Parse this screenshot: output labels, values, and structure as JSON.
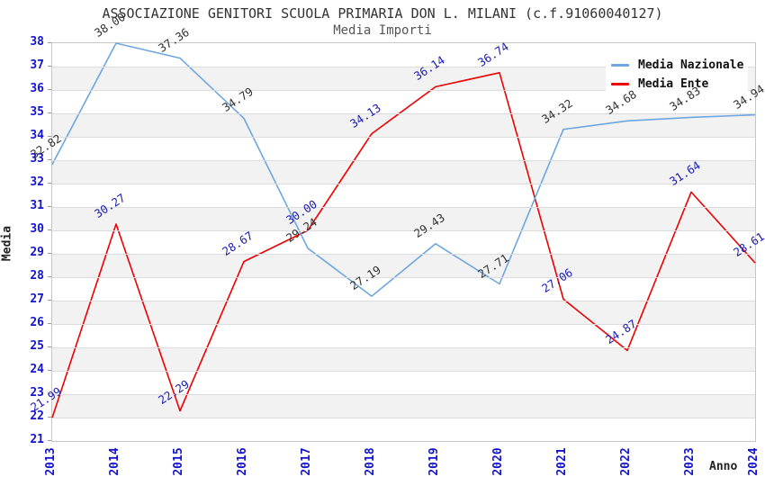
{
  "header": {
    "title": "ASSOCIAZIONE GENITORI SCUOLA PRIMARIA DON L. MILANI (c.f.91060040127)",
    "subtitle": "Media Importi"
  },
  "axes": {
    "y_label": "Media",
    "x_label": "Anno"
  },
  "colors": {
    "nazionale_line": "#6ea6e0",
    "ente_line": "#ee0000",
    "tick_text": "#1414cc",
    "nazionale_point_label": "#333333",
    "ente_point_label": "#1b1bb3",
    "band_gray": "#f2f2f2"
  },
  "legend": {
    "items": [
      {
        "label": "Media Nazionale",
        "color": "#6ea6e0"
      },
      {
        "label": "Media Ente",
        "color": "#ee0000"
      }
    ]
  },
  "chart_data": {
    "type": "line",
    "title": "ASSOCIAZIONE GENITORI SCUOLA PRIMARIA DON L. MILANI (c.f.91060040127)",
    "subtitle": "Media Importi",
    "xlabel": "Anno",
    "ylabel": "Media",
    "x": [
      "2013",
      "2014",
      "2015",
      "2016",
      "2017",
      "2018",
      "2019",
      "2020",
      "2021",
      "2022",
      "2023",
      "2024"
    ],
    "series": [
      {
        "name": "Media Nazionale",
        "color": "#6ea6e0",
        "label_color": "#333333",
        "values": [
          32.82,
          38.0,
          37.36,
          34.79,
          29.24,
          27.19,
          29.43,
          27.71,
          34.32,
          34.68,
          34.83,
          34.94
        ]
      },
      {
        "name": "Media Ente",
        "color": "#ee0000",
        "label_color": "#1b1bb3",
        "values": [
          21.99,
          30.27,
          22.29,
          28.67,
          30.0,
          34.13,
          36.14,
          36.74,
          27.06,
          24.87,
          31.64,
          28.61
        ]
      }
    ],
    "ylim": [
      21,
      38
    ],
    "ytick_step": 1,
    "grid": "horizontal-bands-alternating",
    "legend_position": "top-right",
    "point_labels_format": "0.00"
  }
}
